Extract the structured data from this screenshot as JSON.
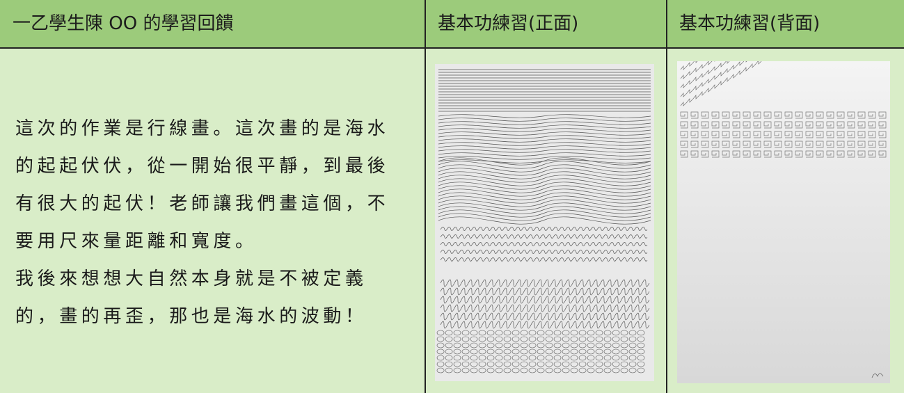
{
  "table": {
    "header": [
      "一乙學生陳 OO 的學習回饋",
      "基本功練習(正面)",
      "基本功練習(背面)"
    ],
    "feedback_lines": [
      "這次的作業是行線畫。這次畫的是海水",
      "的起起伏伏，從一開始很平靜，到最後",
      "有很大的起伏！老師讓我們畫這個，不",
      "要用尺來量距離和寬度。",
      "我後來想想大自然本身就是不被定義",
      "的，畫的再歪，那也是海水的波動！"
    ]
  }
}
